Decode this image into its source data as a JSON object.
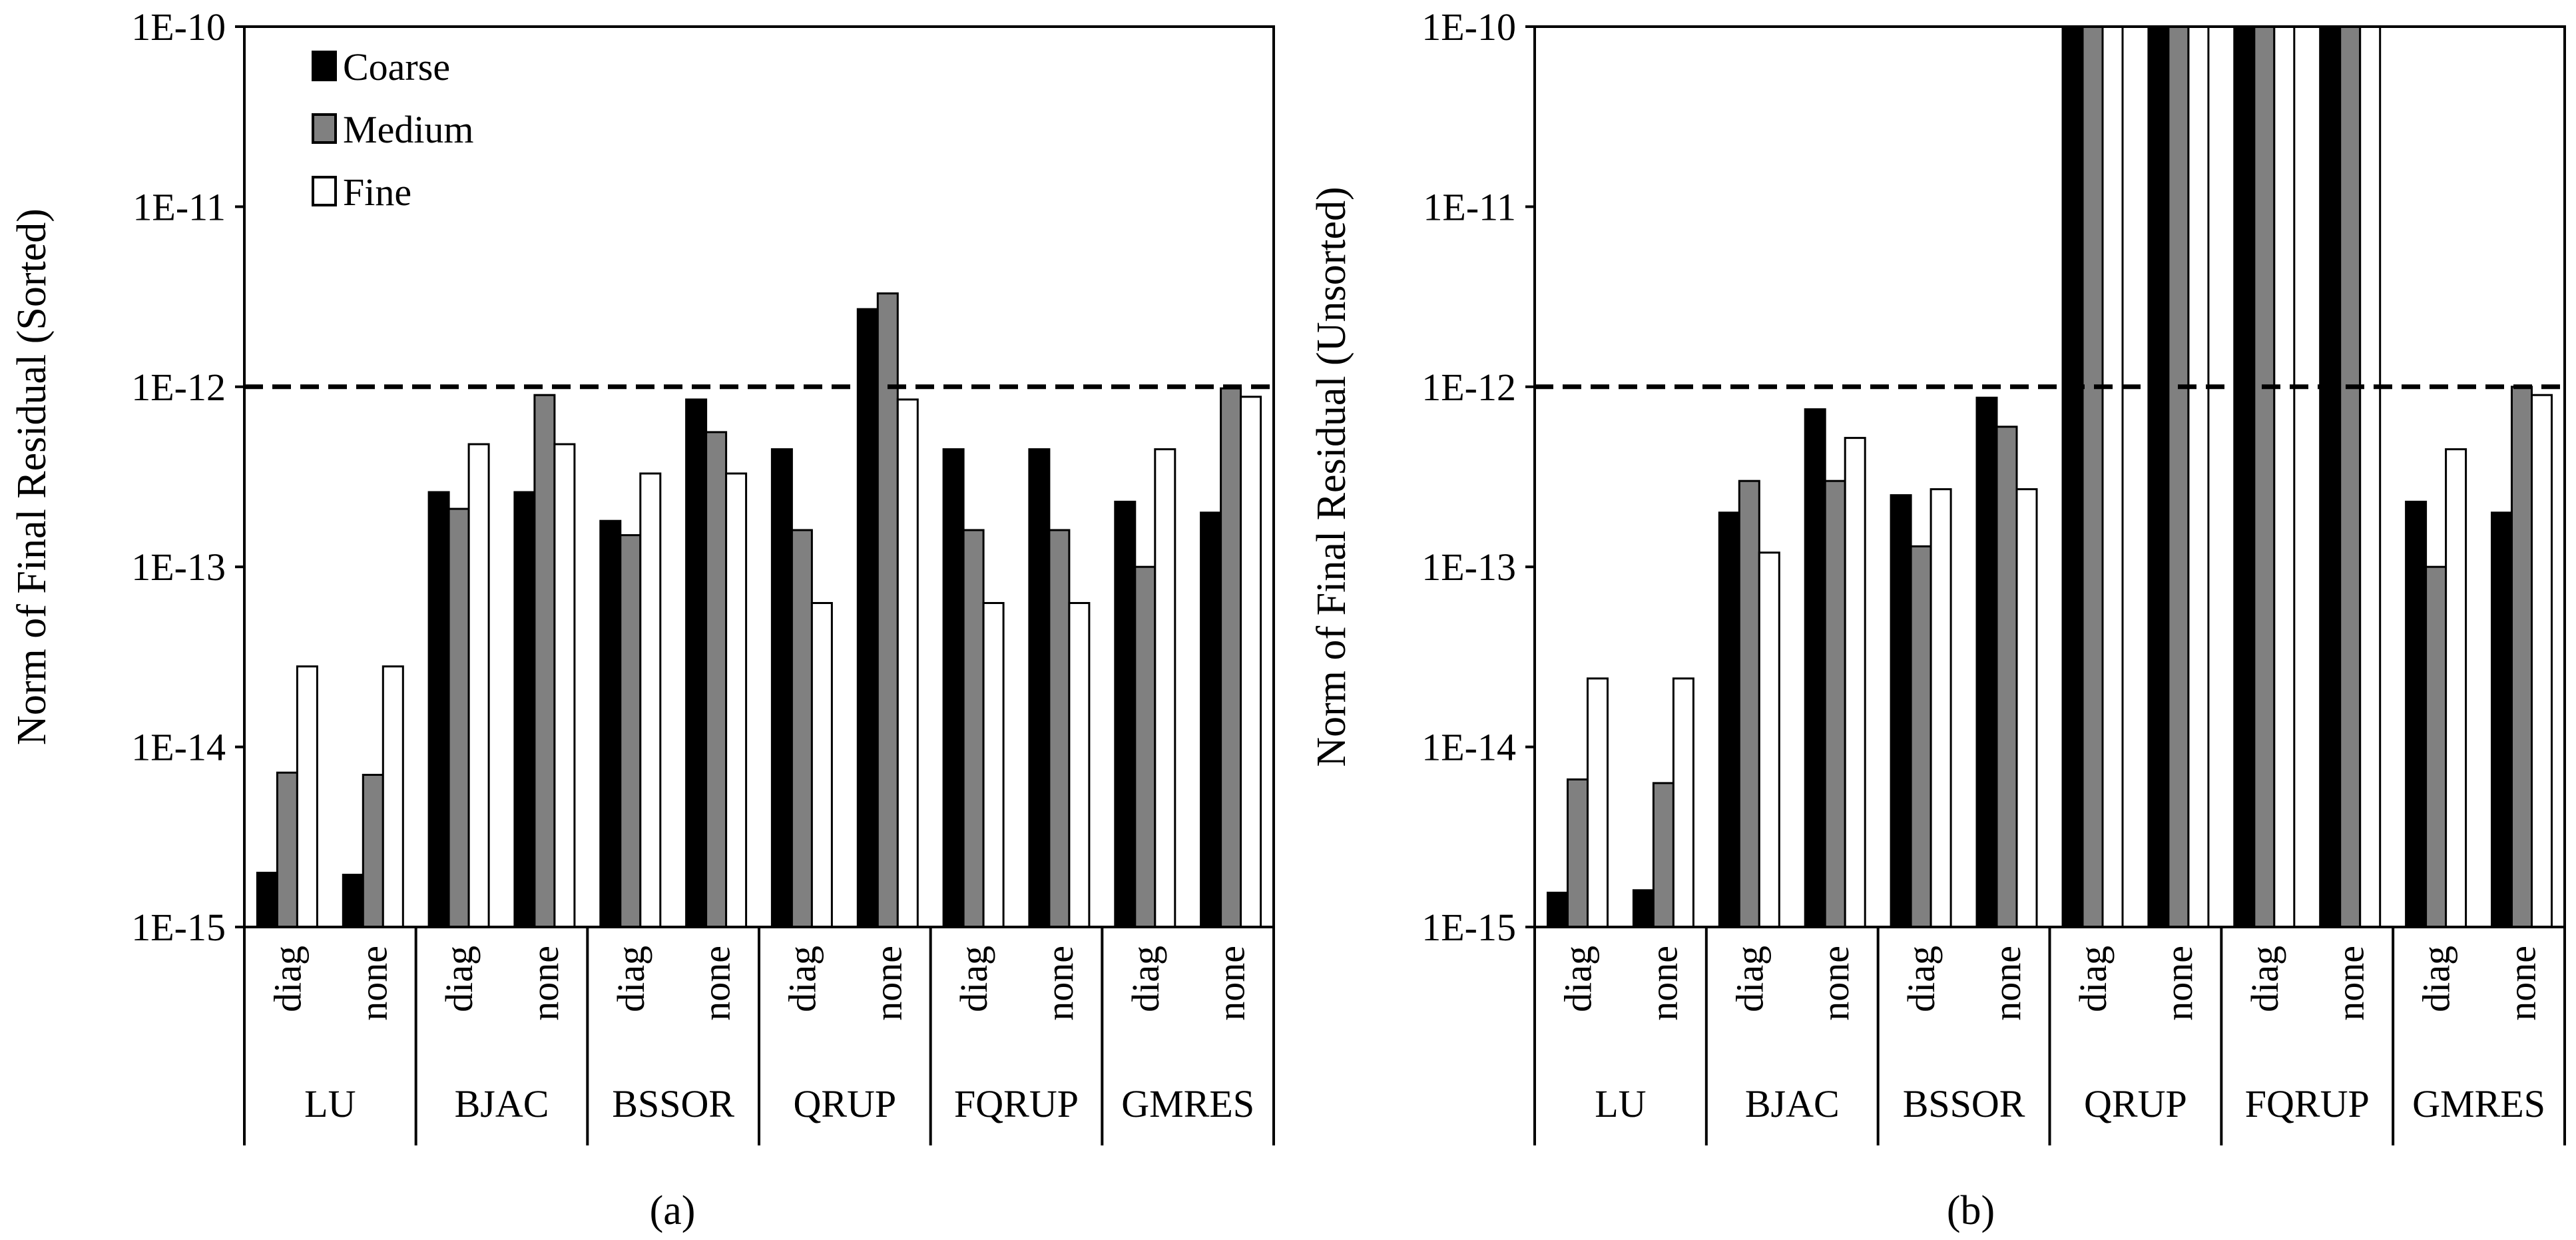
{
  "colors": {
    "Coarse": "#000000",
    "Medium": "#808080",
    "Fine": "#ffffff"
  },
  "chart_data": [
    {
      "type": "bar",
      "caption": "(a)",
      "ylabel": "Norm of Final Residual (Sorted)",
      "xlabel": "",
      "yscale": "log",
      "ylim": [
        1e-15,
        1e-10
      ],
      "yticks": [
        "1E-15",
        "1E-14",
        "1E-13",
        "1E-12",
        "1E-11",
        "1E-10"
      ],
      "reference_line": 1e-12,
      "legend": {
        "position": "top-left",
        "entries": [
          "Coarse",
          "Medium",
          "Fine"
        ]
      },
      "groups": [
        "LU",
        "BJAC",
        "BSSOR",
        "QRUP",
        "FQRUP",
        "GMRES"
      ],
      "subcategories": [
        "diag",
        "none"
      ],
      "series": [
        {
          "name": "Coarse",
          "values": [
            2e-15,
            1.95e-15,
            2.6e-13,
            2.6e-13,
            1.8e-13,
            8.5e-13,
            4.5e-13,
            2.7e-12,
            4.5e-13,
            4.5e-13,
            2.3e-13,
            2e-13
          ]
        },
        {
          "name": "Medium",
          "values": [
            7.2e-15,
            7e-15,
            2.1e-13,
            9e-13,
            1.5e-13,
            5.6e-13,
            1.6e-13,
            3.3e-12,
            1.6e-13,
            1.6e-13,
            1e-13,
            9.8e-13
          ]
        },
        {
          "name": "Fine",
          "values": [
            2.8e-14,
            2.8e-14,
            4.8e-13,
            4.8e-13,
            3.3e-13,
            3.3e-13,
            6.3e-14,
            8.5e-13,
            6.3e-14,
            6.3e-14,
            4.5e-13,
            8.8e-13
          ]
        }
      ]
    },
    {
      "type": "bar",
      "caption": "(b)",
      "ylabel": "Norm of Final Residual (Unsorted)",
      "xlabel": "",
      "yscale": "log",
      "ylim": [
        1e-15,
        1e-10
      ],
      "yticks": [
        "1E-15",
        "1E-14",
        "1E-13",
        "1E-12",
        "1E-11",
        "1E-10"
      ],
      "reference_line": 1e-12,
      "groups": [
        "LU",
        "BJAC",
        "BSSOR",
        "QRUP",
        "FQRUP",
        "GMRES"
      ],
      "subcategories": [
        "diag",
        "none"
      ],
      "series": [
        {
          "name": "Coarse",
          "values": [
            1.55e-15,
            1.6e-15,
            2e-13,
            7.5e-13,
            2.5e-13,
            8.7e-13,
            1e-10,
            1e-10,
            1e-10,
            1e-10,
            2.3e-13,
            2e-13
          ]
        },
        {
          "name": "Medium",
          "values": [
            6.6e-15,
            6.3e-15,
            3e-13,
            3e-13,
            1.3e-13,
            6e-13,
            1e-10,
            1e-10,
            1e-10,
            1e-10,
            1e-13,
            1e-12
          ]
        },
        {
          "name": "Fine",
          "values": [
            2.4e-14,
            2.4e-14,
            1.2e-13,
            5.2e-13,
            2.7e-13,
            2.7e-13,
            1e-10,
            1e-10,
            1e-10,
            1e-10,
            4.5e-13,
            9e-13
          ]
        }
      ]
    }
  ]
}
